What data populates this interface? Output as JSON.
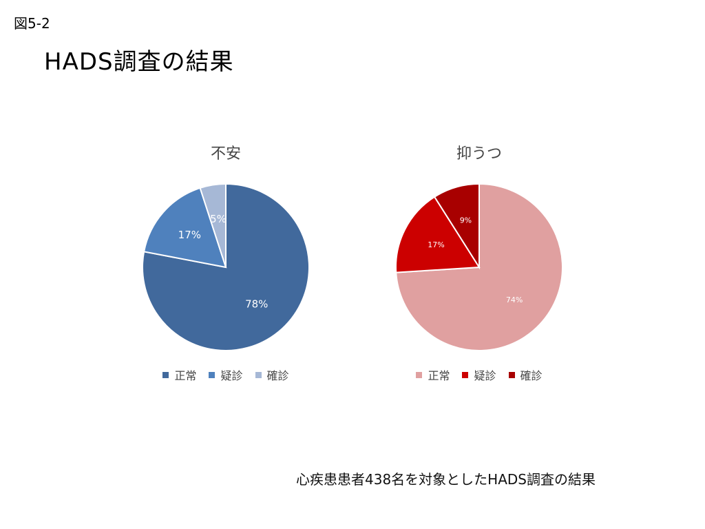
{
  "slide": {
    "figure_label": "図5-2",
    "title": "HADS調査の結果",
    "caption": "心疾患患者438名を対象としたHADS調査の結果"
  },
  "chart_data": [
    {
      "type": "pie",
      "title": "不安",
      "categories": [
        "正常",
        "疑診",
        "確診"
      ],
      "values": [
        78,
        17,
        5
      ],
      "labels": [
        "78%",
        "17%",
        "5%"
      ],
      "colors": [
        "#41699c",
        "#4f81bd",
        "#a6b8d6"
      ],
      "label_color": "#ffffff",
      "legend": "bottom"
    },
    {
      "type": "pie",
      "title": "抑うつ",
      "categories": [
        "正常",
        "疑診",
        "確診"
      ],
      "values": [
        74,
        17,
        9
      ],
      "labels": [
        "74%",
        "17%",
        "9%"
      ],
      "colors": [
        "#e0a0a0",
        "#cc0000",
        "#a80000"
      ],
      "label_color": "#ffffff",
      "legend": "bottom"
    }
  ]
}
